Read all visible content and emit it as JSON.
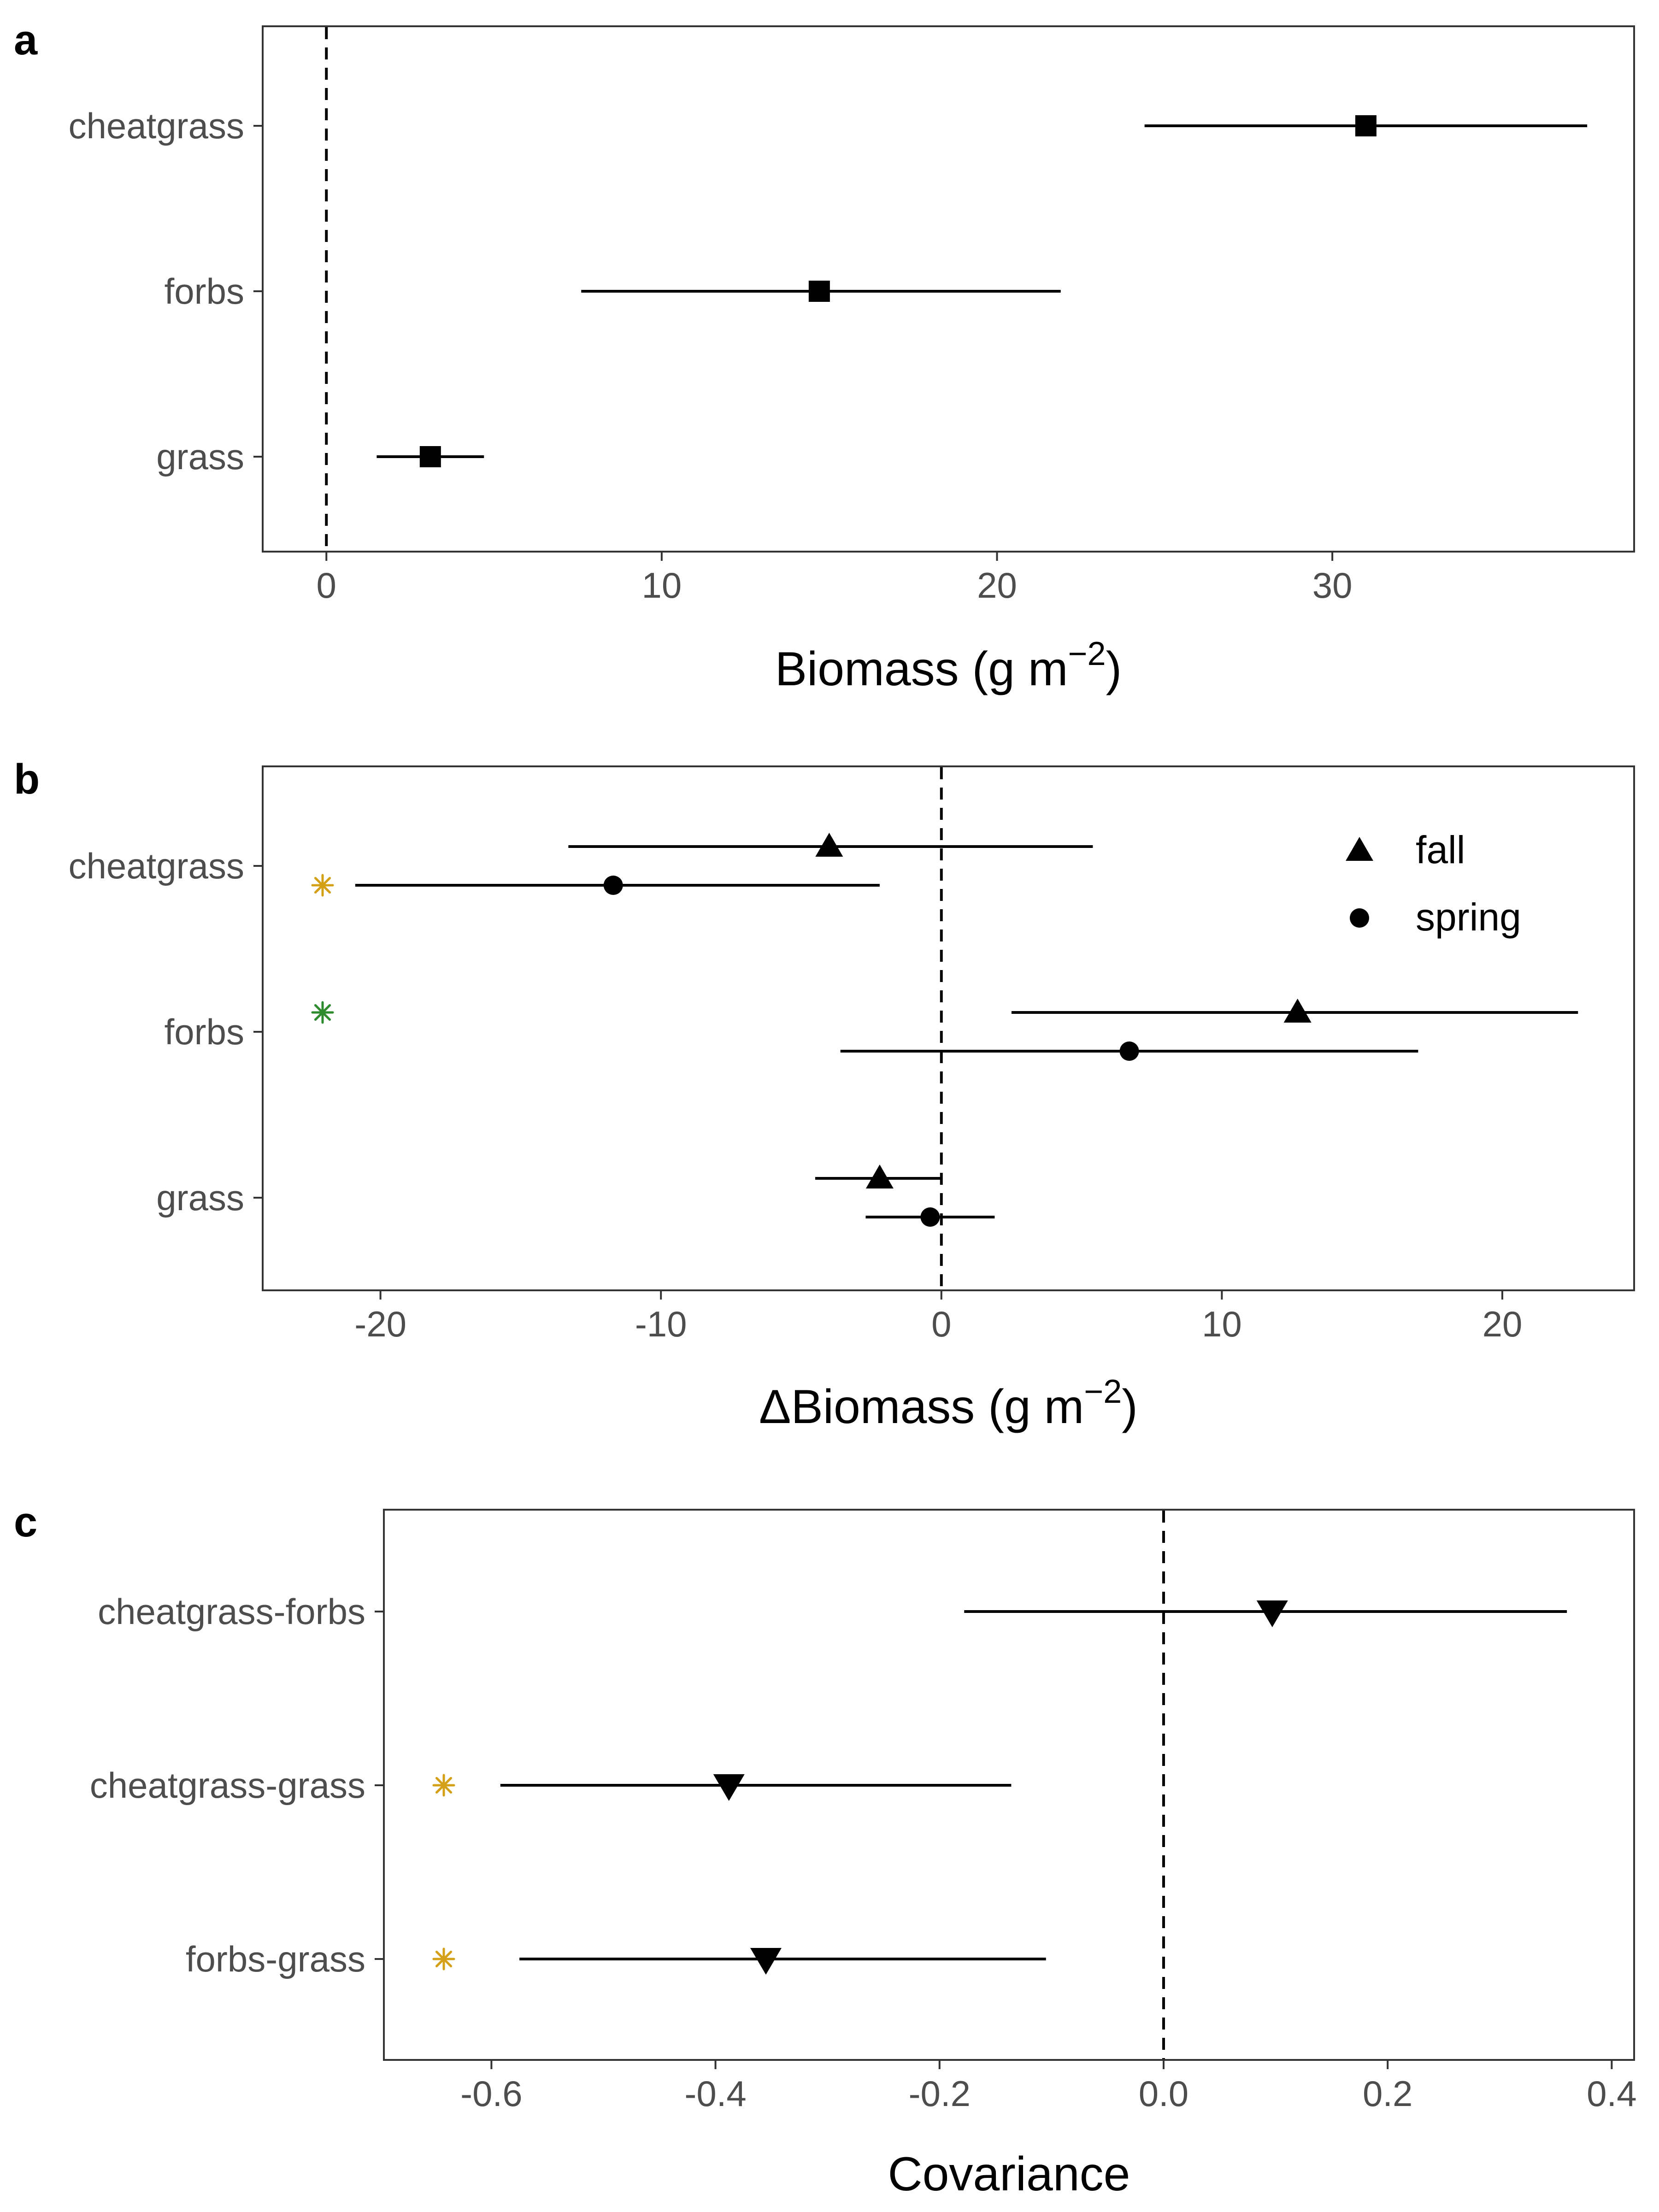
{
  "figure": {
    "colors": {
      "ink": "#000000",
      "tick_text": "#4d4d4d",
      "sig_gold": "#D4A017",
      "sig_green": "#2E8B2E"
    }
  },
  "chart_data": [
    {
      "panel": "a",
      "type": "scatter",
      "subtype": "dot-and-whisker (point estimate with interval)",
      "xlabel": "Biomass (g m",
      "xlabel_superscript": "−2",
      "xlabel_suffix": ")",
      "xlim": [
        -1.9,
        39.0
      ],
      "xticks": [
        0,
        10,
        20,
        30
      ],
      "reference_line_x": 0,
      "reference_line_style": "dashed",
      "categories": [
        "cheatgrass",
        "forbs",
        "grass"
      ],
      "grid": false,
      "series": [
        {
          "marker": "square",
          "points": [
            {
              "category": "cheatgrass",
              "estimate": 31.0,
              "lower": 24.4,
              "upper": 37.6
            },
            {
              "category": "forbs",
              "estimate": 14.7,
              "lower": 7.6,
              "upper": 21.9
            },
            {
              "category": "grass",
              "estimate": 3.1,
              "lower": 1.5,
              "upper": 4.7
            }
          ]
        }
      ],
      "significance_markers": []
    },
    {
      "panel": "b",
      "type": "scatter",
      "subtype": "dot-and-whisker (point estimate with interval)",
      "xlabel": "ΔBiomass (g m",
      "xlabel_superscript": "−2",
      "xlabel_suffix": ")",
      "xlim": [
        -24.2,
        24.7
      ],
      "xticks": [
        -20,
        -10,
        0,
        10,
        20
      ],
      "reference_line_x": 0,
      "reference_line_style": "dashed",
      "categories": [
        "cheatgrass",
        "forbs",
        "grass"
      ],
      "grid": false,
      "legend_position": "top-right",
      "series": [
        {
          "name": "fall",
          "marker": "triangle-up",
          "points": [
            {
              "category": "cheatgrass",
              "estimate": -4.0,
              "lower": -13.3,
              "upper": 5.4
            },
            {
              "category": "forbs",
              "estimate": 12.7,
              "lower": 2.5,
              "upper": 22.7
            },
            {
              "category": "grass",
              "estimate": -2.2,
              "lower": -4.5,
              "upper": 0.0
            }
          ]
        },
        {
          "name": "spring",
          "marker": "circle",
          "points": [
            {
              "category": "cheatgrass",
              "estimate": -11.7,
              "lower": -20.9,
              "upper": -2.2
            },
            {
              "category": "forbs",
              "estimate": 6.7,
              "lower": -3.6,
              "upper": 17.0
            },
            {
              "category": "grass",
              "estimate": -0.4,
              "lower": -2.7,
              "upper": 1.9
            }
          ]
        }
      ],
      "significance_markers": [
        {
          "category": "cheatgrass",
          "series": "spring",
          "symbol": "*",
          "color": "#D4A017"
        },
        {
          "category": "forbs",
          "series": "fall",
          "symbol": "*",
          "color": "#2E8B2E"
        }
      ]
    },
    {
      "panel": "c",
      "type": "scatter",
      "subtype": "dot-and-whisker (point estimate with interval)",
      "xlabel": "Covariance",
      "xlabel_superscript": "",
      "xlabel_suffix": "",
      "xlim": [
        -0.696,
        0.42
      ],
      "xticks": [
        -0.6,
        -0.4,
        -0.2,
        0.0,
        0.2,
        0.4
      ],
      "xtick_labels": [
        "-0.6",
        "-0.4",
        "-0.2",
        "0.0",
        "0.2",
        "0.4"
      ],
      "reference_line_x": 0,
      "reference_line_style": "dashed",
      "categories": [
        "cheatgrass-forbs",
        "cheatgrass-grass",
        "forbs-grass"
      ],
      "grid": false,
      "series": [
        {
          "marker": "triangle-down",
          "points": [
            {
              "category": "cheatgrass-forbs",
              "estimate": 0.097,
              "lower": -0.178,
              "upper": 0.36
            },
            {
              "category": "cheatgrass-grass",
              "estimate": -0.388,
              "lower": -0.592,
              "upper": -0.136
            },
            {
              "category": "forbs-grass",
              "estimate": -0.355,
              "lower": -0.575,
              "upper": -0.105
            }
          ]
        }
      ],
      "significance_markers": [
        {
          "category": "cheatgrass-grass",
          "symbol": "*",
          "color": "#D4A017"
        },
        {
          "category": "forbs-grass",
          "symbol": "*",
          "color": "#D4A017"
        }
      ]
    }
  ]
}
